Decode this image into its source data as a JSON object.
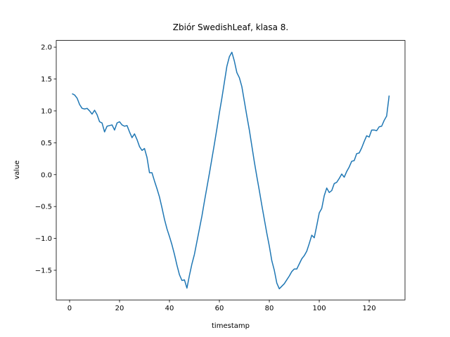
{
  "chart_data": {
    "type": "line",
    "title": "Zbiór SwedishLeaf, klasa 8.",
    "x_label": "timestamp",
    "y_label": "value",
    "color": "#1f77b4",
    "x": [
      1,
      2,
      3,
      4,
      5,
      6,
      7,
      8,
      9,
      10,
      11,
      12,
      13,
      14,
      15,
      16,
      17,
      18,
      19,
      20,
      21,
      22,
      23,
      24,
      25,
      26,
      27,
      28,
      29,
      30,
      31,
      32,
      33,
      34,
      35,
      36,
      37,
      38,
      39,
      40,
      41,
      42,
      43,
      44,
      45,
      46,
      47,
      48,
      49,
      50,
      51,
      52,
      53,
      54,
      55,
      56,
      57,
      58,
      59,
      60,
      61,
      62,
      63,
      64,
      65,
      66,
      67,
      68,
      69,
      70,
      71,
      72,
      73,
      74,
      75,
      76,
      77,
      78,
      79,
      80,
      81,
      82,
      83,
      84,
      85,
      86,
      87,
      88,
      89,
      90,
      91,
      92,
      93,
      94,
      95,
      96,
      97,
      98,
      99,
      100,
      101,
      102,
      103,
      104,
      105,
      106,
      107,
      108,
      109,
      110,
      111,
      112,
      113,
      114,
      115,
      116,
      117,
      118,
      119,
      120,
      121,
      122,
      123,
      124,
      125,
      126,
      127,
      128
    ],
    "values": [
      1.27,
      1.25,
      1.2,
      1.1,
      1.04,
      1.03,
      1.04,
      1.0,
      0.95,
      1.01,
      0.94,
      0.83,
      0.81,
      0.67,
      0.76,
      0.77,
      0.78,
      0.7,
      0.81,
      0.83,
      0.78,
      0.76,
      0.77,
      0.67,
      0.58,
      0.64,
      0.55,
      0.44,
      0.38,
      0.41,
      0.27,
      0.03,
      0.03,
      -0.1,
      -0.22,
      -0.35,
      -0.52,
      -0.7,
      -0.85,
      -0.97,
      -1.1,
      -1.25,
      -1.42,
      -1.57,
      -1.66,
      -1.65,
      -1.78,
      -1.58,
      -1.4,
      -1.25,
      -1.05,
      -0.85,
      -0.65,
      -0.42,
      -0.2,
      0.02,
      0.25,
      0.48,
      0.72,
      0.97,
      1.2,
      1.45,
      1.7,
      1.85,
      1.92,
      1.78,
      1.6,
      1.52,
      1.38,
      1.15,
      0.92,
      0.7,
      0.45,
      0.2,
      -0.03,
      -0.25,
      -0.48,
      -0.7,
      -0.92,
      -1.12,
      -1.35,
      -1.5,
      -1.7,
      -1.79,
      -1.75,
      -1.71,
      -1.65,
      -1.59,
      -1.52,
      -1.48,
      -1.48,
      -1.4,
      -1.32,
      -1.27,
      -1.2,
      -1.08,
      -0.95,
      -0.99,
      -0.8,
      -0.6,
      -0.53,
      -0.33,
      -0.21,
      -0.28,
      -0.25,
      -0.14,
      -0.12,
      -0.06,
      0.01,
      -0.04,
      0.05,
      0.12,
      0.21,
      0.22,
      0.33,
      0.34,
      0.42,
      0.52,
      0.61,
      0.59,
      0.7,
      0.7,
      0.69,
      0.75,
      0.76,
      0.85,
      0.92,
      1.24
    ],
    "xlim": [
      -5.35,
      134.35
    ],
    "ylim": [
      -1.965,
      2.105
    ],
    "xticks": [
      0,
      20,
      40,
      60,
      80,
      100,
      120
    ],
    "yticks": [
      {
        "value": -1.5,
        "label": "−1.5"
      },
      {
        "value": -1.0,
        "label": "−1.0"
      },
      {
        "value": -0.5,
        "label": "−0.5"
      },
      {
        "value": 0,
        "label": "0.0"
      },
      0.5,
      {
        "value": 1.0,
        "label": "1.0"
      },
      {
        "value": 1.5,
        "label": "1.5"
      },
      {
        "value": 2.0,
        "label": "2.0"
      }
    ]
  }
}
